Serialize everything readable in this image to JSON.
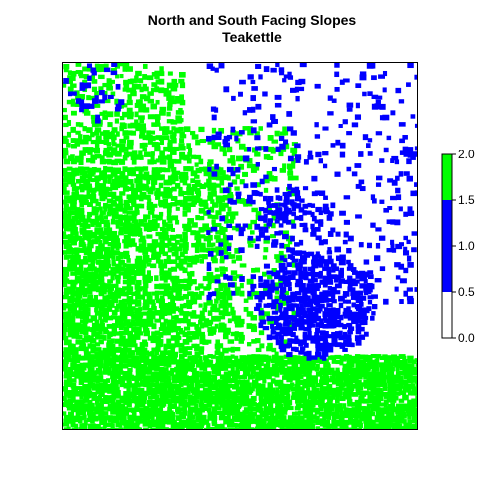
{
  "title": {
    "line1": "North and South Facing Slopes",
    "line2": "Teakettle"
  },
  "legend": {
    "breaks": [
      0.0,
      0.5,
      1.5,
      2.0
    ],
    "tick_labels": [
      "0.0",
      "0.5",
      "1.0",
      "1.5",
      "2.0"
    ],
    "classes": [
      {
        "range": [
          0.0,
          0.5
        ],
        "color": "#ffffff"
      },
      {
        "range": [
          0.5,
          1.5
        ],
        "color": "#0000ff"
      },
      {
        "range": [
          1.5,
          2.0
        ],
        "color": "#00ff00"
      }
    ]
  },
  "colors": {
    "north_facing": "#00ff00",
    "south_facing": "#0000ff",
    "flat": "#ffffff"
  }
}
